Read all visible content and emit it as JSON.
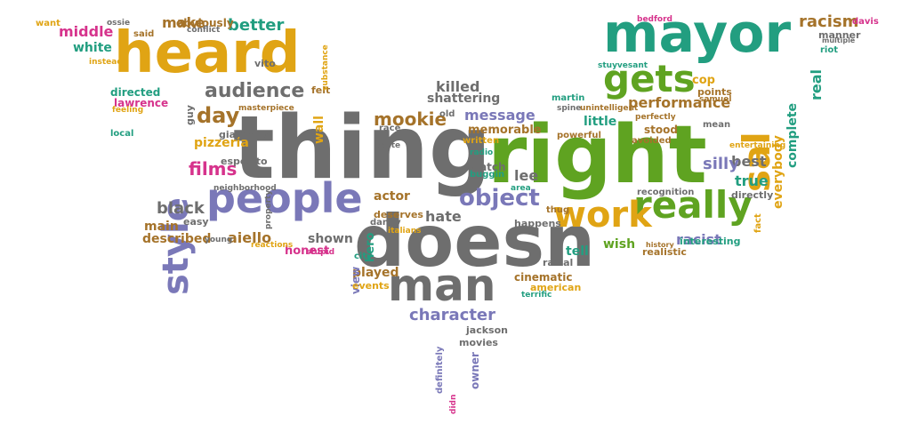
{
  "colors": {
    "gray": "#6e6e6e",
    "green": "#5fa321",
    "gold": "#e0a414",
    "purple": "#7a78b8",
    "teal": "#229e80",
    "brown": "#a5732a",
    "pink": "#d6338c"
  },
  "words": [
    {
      "id": "thing",
      "text": "thing",
      "color": "gray"
    },
    {
      "id": "right",
      "text": "right",
      "color": "green"
    },
    {
      "id": "doesn",
      "text": "doesn",
      "color": "gray"
    },
    {
      "id": "heard",
      "text": "heard",
      "color": "gold"
    },
    {
      "id": "mayor",
      "text": "mayor",
      "color": "teal"
    },
    {
      "id": "people",
      "text": "people",
      "color": "purple"
    },
    {
      "id": "really",
      "text": "really",
      "color": "green"
    },
    {
      "id": "man",
      "text": "man",
      "color": "gray"
    },
    {
      "id": "gets",
      "text": "gets",
      "color": "green"
    },
    {
      "id": "work",
      "text": "work",
      "color": "gold"
    },
    {
      "id": "style",
      "text": "style",
      "color": "purple"
    },
    {
      "id": "sal",
      "text": "sal",
      "color": "gold"
    },
    {
      "id": "audience",
      "text": "audience",
      "color": "gray"
    },
    {
      "id": "object",
      "text": "object",
      "color": "purple"
    },
    {
      "id": "character",
      "text": "character",
      "color": "purple"
    },
    {
      "id": "day",
      "text": "day",
      "color": "brown"
    },
    {
      "id": "films",
      "text": "films",
      "color": "pink"
    },
    {
      "id": "better",
      "text": "better",
      "color": "teal"
    },
    {
      "id": "make",
      "text": "make",
      "color": "brown"
    },
    {
      "id": "middle",
      "text": "middle",
      "color": "pink"
    },
    {
      "id": "white",
      "text": "white",
      "color": "teal"
    },
    {
      "id": "mookie",
      "text": "mookie",
      "color": "brown"
    },
    {
      "id": "message",
      "text": "message",
      "color": "purple"
    },
    {
      "id": "killed",
      "text": "killed",
      "color": "gray"
    },
    {
      "id": "shattering",
      "text": "shattering",
      "color": "gray"
    },
    {
      "id": "performance",
      "text": "performance",
      "color": "brown"
    },
    {
      "id": "racism",
      "text": "racism",
      "color": "brown"
    },
    {
      "id": "everybody",
      "text": "everybody",
      "color": "gold"
    },
    {
      "id": "complete",
      "text": "complete",
      "color": "teal"
    },
    {
      "id": "real",
      "text": "real",
      "color": "teal"
    },
    {
      "id": "black",
      "text": "black",
      "color": "gray"
    },
    {
      "id": "aiello",
      "text": "aiello",
      "color": "brown"
    },
    {
      "id": "described",
      "text": "described",
      "color": "brown"
    },
    {
      "id": "main",
      "text": "main",
      "color": "brown"
    },
    {
      "id": "pizzeria",
      "text": "pizzeria",
      "color": "gold"
    },
    {
      "id": "hate",
      "text": "hate",
      "color": "gray"
    },
    {
      "id": "lee",
      "text": "lee",
      "color": "gray"
    },
    {
      "id": "tell",
      "text": "tell",
      "color": "teal"
    },
    {
      "id": "wish",
      "text": "wish",
      "color": "green"
    },
    {
      "id": "racist",
      "text": "racist",
      "color": "purple"
    },
    {
      "id": "true",
      "text": "true",
      "color": "teal"
    },
    {
      "id": "best",
      "text": "best",
      "color": "gray"
    },
    {
      "id": "silly",
      "text": "silly",
      "color": "purple"
    },
    {
      "id": "little",
      "text": "little",
      "color": "teal"
    },
    {
      "id": "memorable",
      "text": "memorable",
      "color": "brown"
    },
    {
      "id": "actor",
      "text": "actor",
      "color": "brown"
    },
    {
      "id": "played",
      "text": "played",
      "color": "brown"
    },
    {
      "id": "shown",
      "text": "shown",
      "color": "gray"
    },
    {
      "id": "honest",
      "text": "honest",
      "color": "pink"
    },
    {
      "id": "hero",
      "text": "hero",
      "color": "teal"
    },
    {
      "id": "view",
      "text": "view",
      "color": "purple"
    },
    {
      "id": "owner",
      "text": "owner",
      "color": "purple"
    },
    {
      "id": "cop",
      "text": "cop",
      "color": "gold"
    },
    {
      "id": "directed",
      "text": "directed",
      "color": "teal"
    },
    {
      "id": "lawrence",
      "text": "lawrence",
      "color": "pink"
    },
    {
      "id": "wall",
      "text": "wall",
      "color": "gold"
    },
    {
      "id": "felt",
      "text": "felt",
      "color": "brown"
    },
    {
      "id": "vito",
      "text": "vito",
      "color": "gray"
    },
    {
      "id": "obviously",
      "text": "obviously",
      "color": "brown"
    },
    {
      "id": "esposito",
      "text": "esposito",
      "color": "gray"
    },
    {
      "id": "giancarlo",
      "text": "giancarlo",
      "color": "gray"
    },
    {
      "id": "easy",
      "text": "easy",
      "color": "gray"
    },
    {
      "id": "cinematic",
      "text": "cinematic",
      "color": "brown"
    },
    {
      "id": "american",
      "text": "american",
      "color": "gold"
    },
    {
      "id": "deserves",
      "text": "deserves",
      "color": "brown"
    },
    {
      "id": "happens",
      "text": "happens",
      "color": "gray"
    },
    {
      "id": "watch",
      "text": "watch",
      "color": "gray"
    },
    {
      "id": "stood",
      "text": "stood",
      "color": "brown"
    },
    {
      "id": "interesting",
      "text": "interesting",
      "color": "teal"
    },
    {
      "id": "realistic",
      "text": "realistic",
      "color": "brown"
    },
    {
      "id": "directly",
      "text": "directly",
      "color": "gray"
    },
    {
      "id": "points",
      "text": "points",
      "color": "brown"
    },
    {
      "id": "samuel",
      "text": "samuel",
      "color": "brown"
    },
    {
      "id": "jackson",
      "text": "jackson",
      "color": "gray"
    },
    {
      "id": "movies",
      "text": "movies",
      "color": "gray"
    },
    {
      "id": "events",
      "text": "events",
      "color": "gold"
    },
    {
      "id": "racial",
      "text": "racial",
      "color": "gray"
    },
    {
      "id": "want",
      "text": "want",
      "color": "gold"
    },
    {
      "id": "ossie",
      "text": "ossie",
      "color": "gray"
    },
    {
      "id": "said",
      "text": "said",
      "color": "brown"
    },
    {
      "id": "instead",
      "text": "instead",
      "color": "gold"
    },
    {
      "id": "conflict",
      "text": "conflict",
      "color": "gray"
    },
    {
      "id": "guy",
      "text": "guy",
      "color": "gray"
    },
    {
      "id": "substance",
      "text": "substance",
      "color": "gold"
    },
    {
      "id": "masterpiece",
      "text": "masterpiece",
      "color": "brown"
    },
    {
      "id": "local",
      "text": "local",
      "color": "teal"
    },
    {
      "id": "feeling",
      "text": "feeling",
      "color": "gold"
    },
    {
      "id": "racewar",
      "text": "race",
      "color": "gray"
    },
    {
      "id": "taste",
      "text": "taste",
      "color": "gray"
    },
    {
      "id": "old",
      "text": "old",
      "color": "gray"
    },
    {
      "id": "martin",
      "text": "martin",
      "color": "teal"
    },
    {
      "id": "spine",
      "text": "spine",
      "color": "gray"
    },
    {
      "id": "unintelligent",
      "text": "unintelligent",
      "color": "brown"
    },
    {
      "id": "powerful",
      "text": "powerful",
      "color": "brown"
    },
    {
      "id": "perfectly",
      "text": "perfectly",
      "color": "brown"
    },
    {
      "id": "mean",
      "text": "mean",
      "color": "gray"
    },
    {
      "id": "avoided",
      "text": "avoided",
      "color": "brown"
    },
    {
      "id": "manner",
      "text": "manner",
      "color": "gray"
    },
    {
      "id": "multiple",
      "text": "multiple",
      "color": "gray"
    },
    {
      "id": "riot",
      "text": "riot",
      "color": "teal"
    },
    {
      "id": "davis",
      "text": "davis",
      "color": "pink"
    },
    {
      "id": "bedford",
      "text": "bedford",
      "color": "pink"
    },
    {
      "id": "stuyvesant",
      "text": "stuyvesant",
      "color": "teal"
    },
    {
      "id": "recognition",
      "text": "recognition",
      "color": "gray"
    },
    {
      "id": "entertaining",
      "text": "entertaining",
      "color": "gold"
    },
    {
      "id": "thug",
      "text": "thug",
      "color": "brown"
    },
    {
      "id": "buggin",
      "text": "buggin",
      "color": "teal"
    },
    {
      "id": "radio",
      "text": "radio",
      "color": "teal"
    },
    {
      "id": "written",
      "text": "written",
      "color": "gold"
    },
    {
      "id": "area",
      "text": "area",
      "color": "teal"
    },
    {
      "id": "danny",
      "text": "danny",
      "color": "gray"
    },
    {
      "id": "city",
      "text": "city",
      "color": "teal"
    },
    {
      "id": "italians",
      "text": "italians",
      "color": "gold"
    },
    {
      "id": "reactions",
      "text": "reactions",
      "color": "gold"
    },
    {
      "id": "stupid",
      "text": "stupid",
      "color": "pink"
    },
    {
      "id": "young",
      "text": "young",
      "color": "gray"
    },
    {
      "id": "neighborhood",
      "text": "neighborhood",
      "color": "gray"
    },
    {
      "id": "property",
      "text": "property",
      "color": "gray"
    },
    {
      "id": "definitely",
      "text": "definitely",
      "color": "purple"
    },
    {
      "id": "didn",
      "text": "didn",
      "color": "pink"
    },
    {
      "id": "history",
      "text": "history",
      "color": "brown"
    },
    {
      "id": "terrific",
      "text": "terrific",
      "color": "teal"
    },
    {
      "id": "fact",
      "text": "fact",
      "color": "gold"
    }
  ]
}
